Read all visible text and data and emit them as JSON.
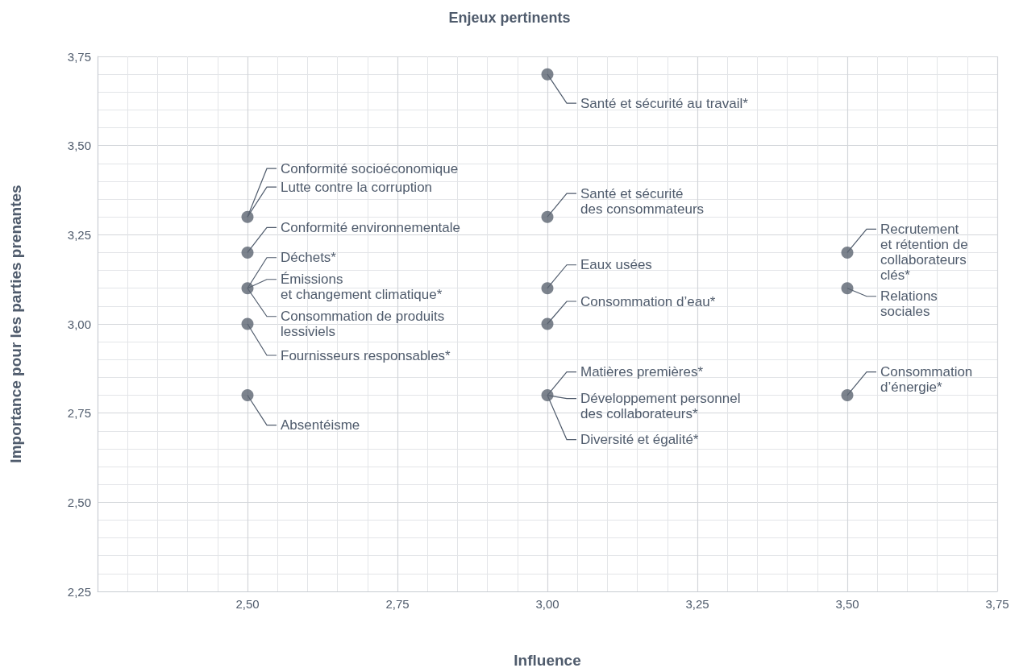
{
  "chart_data": {
    "type": "scatter",
    "title": "Enjeux pertinents",
    "xlabel": "Influence",
    "ylabel": "Importance pour les parties prenantes",
    "x": [
      3.0,
      2.5,
      2.5,
      2.5,
      2.5,
      2.5,
      3.0,
      3.0,
      3.0,
      3.0,
      3.5,
      3.5,
      3.5
    ],
    "series": [
      {
        "color": "#5b6470",
        "values": [
          3.7,
          3.3,
          3.2,
          3.1,
          3.0,
          2.8,
          3.3,
          3.1,
          3.0,
          2.8,
          3.2,
          3.1,
          2.8
        ]
      }
    ],
    "marker": "circle",
    "xlim": [
      2.25,
      3.75
    ],
    "xticks": [
      {
        "value": 2.5,
        "label": "2,50"
      },
      {
        "value": 2.75,
        "label": "2,75"
      },
      {
        "value": 3.0,
        "label": "3,00"
      },
      {
        "value": 3.25,
        "label": "3,25"
      },
      {
        "value": 3.5,
        "label": "3,50"
      },
      {
        "value": 3.75,
        "label": "3,75"
      }
    ],
    "ylim": [
      2.25,
      3.75
    ],
    "yticks": [
      {
        "value": 2.25,
        "label": "2,25"
      },
      {
        "value": 2.5,
        "label": "2,50"
      },
      {
        "value": 2.75,
        "label": "2,75"
      },
      {
        "value": 3.0,
        "label": "3,00"
      },
      {
        "value": 3.25,
        "label": "3,25"
      },
      {
        "value": 3.5,
        "label": "3,50"
      },
      {
        "value": 3.75,
        "label": "3,75"
      }
    ],
    "grid": true,
    "annotations": [
      {
        "text": "Santé et sécurité au travail*",
        "x": 3.0,
        "y": 3.7
      },
      {
        "text": "Conformité socioéconomique",
        "x": 2.5,
        "y": 3.3
      },
      {
        "text": "Lutte contre la corruption",
        "x": 2.5,
        "y": 3.3
      },
      {
        "text": "Conformité environnementale",
        "x": 2.5,
        "y": 3.2
      },
      {
        "text": "Déchets*",
        "x": 2.5,
        "y": 3.1
      },
      {
        "text": "Émissions\net changement climatique*",
        "x": 2.5,
        "y": 3.1
      },
      {
        "text": "Consommation de produits\nlessiviels",
        "x": 2.5,
        "y": 3.1
      },
      {
        "text": "Fournisseurs responsables*",
        "x": 2.5,
        "y": 3.0
      },
      {
        "text": "Absentéisme",
        "x": 2.5,
        "y": 2.8
      },
      {
        "text": "Santé et sécurité\ndes consommateurs",
        "x": 3.0,
        "y": 3.3
      },
      {
        "text": "Eaux usées",
        "x": 3.0,
        "y": 3.1
      },
      {
        "text": "Consommation d’eau*",
        "x": 3.0,
        "y": 3.0
      },
      {
        "text": "Matières premières*",
        "x": 3.0,
        "y": 2.8
      },
      {
        "text": "Développement personnel\ndes collaborateurs*",
        "x": 3.0,
        "y": 2.8
      },
      {
        "text": "Diversité et égalité*",
        "x": 3.0,
        "y": 2.8
      },
      {
        "text": "Recrutement\net rétention de\ncollaborateurs\nclés*",
        "x": 3.5,
        "y": 3.2
      },
      {
        "text": "Relations\nsociales",
        "x": 3.5,
        "y": 3.1
      },
      {
        "text": "Consommation\nd’énergie*",
        "x": 3.5,
        "y": 2.8
      }
    ]
  }
}
